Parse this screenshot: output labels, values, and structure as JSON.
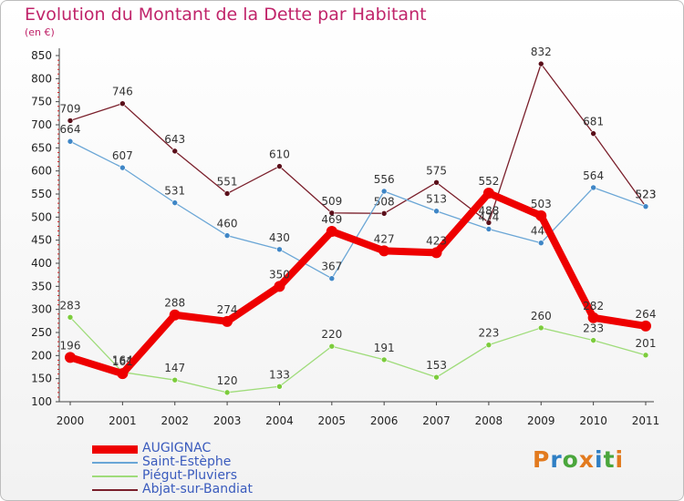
{
  "title": "Evolution du Montant de la Dette par Habitant",
  "subtitle": "(en €)",
  "brand": {
    "letters": [
      "P",
      "r",
      "o",
      "x",
      "i",
      "t",
      "i"
    ],
    "colors": [
      "#e27a1e",
      "#2f7fc4",
      "#4aa63c",
      "#e27a1e",
      "#2f7fc4",
      "#4aa63c",
      "#e27a1e"
    ]
  },
  "chart_data": {
    "type": "line",
    "title": "Evolution du Montant de la Dette par Habitant",
    "ylabel": "(en €)",
    "ylim": [
      100,
      850
    ],
    "yticks": [
      100,
      150,
      200,
      250,
      300,
      350,
      400,
      450,
      500,
      550,
      600,
      650,
      700,
      750,
      800,
      850
    ],
    "grid": false,
    "legend_position": "bottom-left",
    "x": [
      "2000",
      "2001",
      "2002",
      "2003",
      "2004",
      "2005",
      "2006",
      "2007",
      "2008",
      "2009",
      "2010",
      "2011"
    ],
    "series": [
      {
        "name": "Abjat-sur-Bandiat",
        "color": "#7a1f2b",
        "marker": "#5a0f1a",
        "values": [
          709,
          746,
          643,
          551,
          610,
          509,
          508,
          575,
          488,
          832,
          681,
          523
        ]
      },
      {
        "name": "Saint-Estèphe",
        "color": "#6aa6d6",
        "marker": "#3f86c6",
        "values": [
          664,
          607,
          531,
          460,
          430,
          367,
          556,
          513,
          474,
          444,
          564,
          523
        ]
      },
      {
        "name": "Piégut-Pluviers",
        "color": "#9fdc7a",
        "marker": "#7ccc3c",
        "values": [
          283,
          164,
          147,
          120,
          133,
          220,
          191,
          153,
          223,
          260,
          233,
          201
        ]
      },
      {
        "name": "AUGIGNAC",
        "color": "#ee0000",
        "marker": "#ee0000",
        "values": [
          196,
          161,
          288,
          274,
          350,
          469,
          427,
          423,
          552,
          503,
          282,
          264
        ]
      }
    ],
    "legend_order": [
      "AUGIGNAC",
      "Saint-Estèphe",
      "Piégut-Pluviers",
      "Abjat-sur-Bandiat"
    ]
  }
}
